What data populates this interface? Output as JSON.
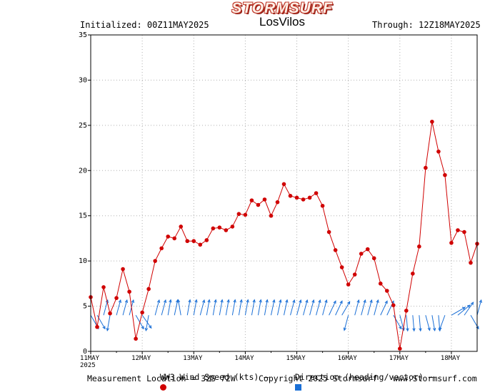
{
  "header": {
    "logo": "STORMSURF",
    "initialized": "Initialized: 00Z11MAY2025",
    "title": "LosVilos",
    "through": "Through: 12Z18MAY2025"
  },
  "legend": {
    "speed_label": "WW3 Wind Speed (kts) –",
    "direction_label": "Direction (heading/vector) –"
  },
  "footer": {
    "location": "Measurement Location = 32S 72W",
    "copyright": "Copyright 2025 Stormsurf",
    "site": "www.Stormsurf.com"
  },
  "colors": {
    "speed": "#d00000",
    "direction": "#1a6fd6",
    "grid": "#b0b0b0"
  },
  "chart_data": {
    "type": "line",
    "title": "LosVilos",
    "xlabel": "",
    "ylabel": "",
    "ylim": [
      0,
      35
    ],
    "yticks": [
      0,
      5,
      10,
      15,
      20,
      25,
      30,
      35
    ],
    "xlim_hours": [
      0,
      180
    ],
    "xticks": [
      {
        "label": "11MAY",
        "sub": "2025"
      },
      {
        "label": "12MAY"
      },
      {
        "label": "13MAY"
      },
      {
        "label": "14MAY"
      },
      {
        "label": "15MAY"
      },
      {
        "label": "16MAY"
      },
      {
        "label": "17MAY"
      },
      {
        "label": "18MAY"
      }
    ],
    "grid": true,
    "step_hours": 3,
    "series": [
      {
        "name": "WW3 Wind Speed (kts)",
        "values": [
          6.0,
          2.7,
          7.1,
          4.2,
          5.9,
          9.1,
          6.6,
          1.4,
          4.3,
          6.9,
          10.0,
          11.4,
          12.7,
          12.5,
          13.8,
          12.2,
          12.2,
          11.8,
          12.3,
          13.6,
          13.7,
          13.4,
          13.8,
          15.2,
          15.1,
          16.7,
          16.2,
          16.8,
          15.0,
          16.5,
          18.5,
          17.2,
          17.0,
          16.8,
          17.0,
          17.5,
          16.1,
          13.2,
          11.2,
          9.3,
          7.4,
          8.5,
          10.8,
          11.3,
          10.3,
          7.5,
          6.7,
          5.1,
          0.3,
          4.5,
          8.6,
          11.6,
          20.3,
          25.4,
          22.1,
          19.5,
          12.0,
          13.4,
          13.2,
          9.8,
          11.9
        ]
      },
      {
        "name": "Direction (heading/vector)",
        "headings_deg": [
          150,
          150,
          15,
          190,
          15,
          15,
          15,
          150,
          145,
          190,
          15,
          15,
          10,
          12,
          350,
          10,
          10,
          15,
          10,
          10,
          10,
          10,
          10,
          10,
          10,
          10,
          10,
          10,
          12,
          12,
          12,
          15,
          15,
          15,
          15,
          15,
          15,
          25,
          25,
          30,
          195,
          15,
          15,
          15,
          15,
          25,
          25,
          150,
          165,
          175,
          175,
          175,
          165,
          170,
          175,
          200,
          60,
          50,
          35,
          150,
          15
        ]
      }
    ]
  }
}
